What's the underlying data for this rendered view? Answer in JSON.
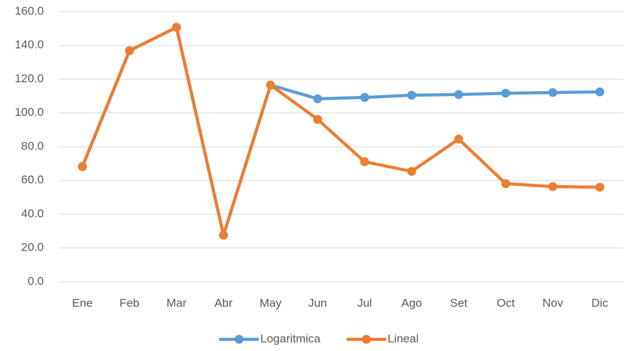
{
  "chart_data": {
    "type": "line",
    "categories": [
      "Ene",
      "Feb",
      "Mar",
      "Abr",
      "May",
      "Jun",
      "Jul",
      "Ago",
      "Set",
      "Oct",
      "Nov",
      "Dic"
    ],
    "series": [
      {
        "name": "Logaritmica",
        "color": "#5b9bd5",
        "values": [
          68.2,
          136.9,
          150.7,
          27.6,
          116.5,
          108.4,
          109.2,
          110.5,
          110.9,
          111.7,
          112.1,
          112.5
        ]
      },
      {
        "name": "Lineal",
        "color": "#ed7d31",
        "values": [
          68.2,
          136.9,
          150.7,
          27.6,
          116.5,
          96.2,
          71.1,
          65.4,
          84.5,
          58.1,
          56.4,
          56.0
        ]
      }
    ],
    "ylim": [
      0,
      160
    ],
    "yticks": [
      {
        "value": 0,
        "label": "0.0"
      },
      {
        "value": 20,
        "label": "20.0"
      },
      {
        "value": 40,
        "label": "40.0"
      },
      {
        "value": 60,
        "label": "60.0"
      },
      {
        "value": 80,
        "label": "80.0"
      },
      {
        "value": 100,
        "label": "100.0"
      },
      {
        "value": 120,
        "label": "120.0"
      },
      {
        "value": 140,
        "label": "140.0"
      },
      {
        "value": 160,
        "label": "160.0"
      }
    ],
    "grid": true,
    "legend": "bottom"
  }
}
